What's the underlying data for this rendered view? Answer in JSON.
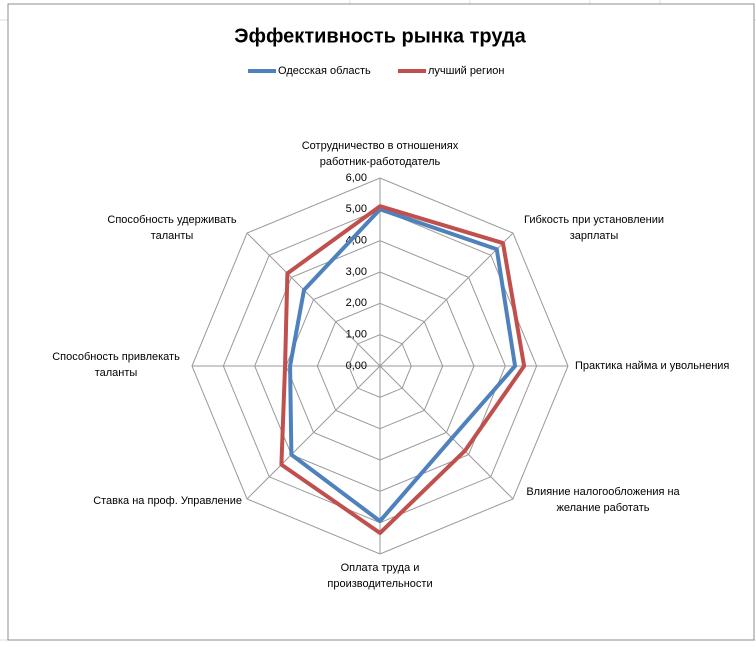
{
  "chart_data": {
    "type": "radar",
    "title": "Эффективность рынка труда",
    "categories": [
      "Сотрудничество в отношениях работник-работодатель",
      "Гибкость при установлении зарплаты",
      "Практика найма и увольнения",
      "Влияние налогообложения на желание работать",
      "Оплата труда и производительности",
      "Ставка на проф. Управление",
      "Способность привлекать таланты",
      "Способность удерживать таланты"
    ],
    "series": [
      {
        "name": "Одесская область",
        "color": "#4f81bd",
        "values": [
          5.0,
          5.27,
          4.31,
          3.25,
          4.95,
          4.0,
          2.87,
          3.43
        ]
      },
      {
        "name": "лучший регион",
        "color": "#c0504d",
        "values": [
          5.1,
          5.55,
          4.6,
          3.83,
          5.33,
          4.45,
          3.03,
          4.18
        ]
      }
    ],
    "ylim": [
      0,
      6
    ],
    "yticks": [
      {
        "value": 0,
        "label": "0,00"
      },
      {
        "value": 1,
        "label": "1,00"
      },
      {
        "value": 2,
        "label": "2,00"
      },
      {
        "value": 3,
        "label": "3,00"
      },
      {
        "value": 4,
        "label": "4,00"
      },
      {
        "value": 5,
        "label": "5,00"
      },
      {
        "value": 6,
        "label": "6,00"
      }
    ],
    "grid": true
  }
}
